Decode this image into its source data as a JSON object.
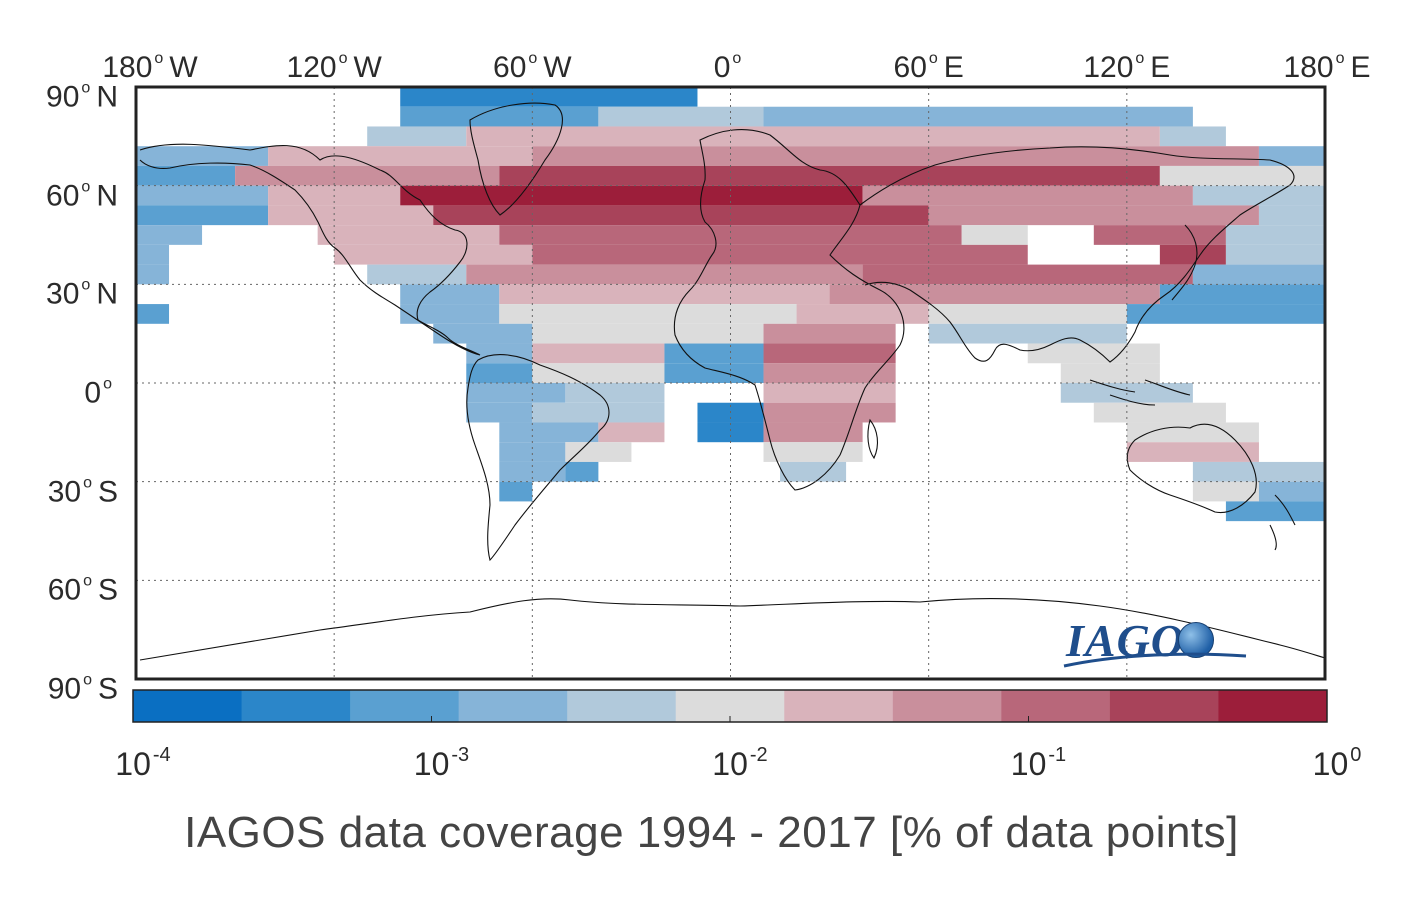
{
  "figure": {
    "caption": "IAGOS data coverage 1994 - 2017 [% of data points]",
    "logo_text": "IAGOS",
    "logo_icon": "globe-icon"
  },
  "map": {
    "lon_labels": [
      {
        "deg": "180",
        "hemi": "W",
        "lon": -180
      },
      {
        "deg": "120",
        "hemi": "W",
        "lon": -120
      },
      {
        "deg": "60",
        "hemi": "W",
        "lon": -60
      },
      {
        "deg": "0",
        "hemi": "",
        "lon": 0
      },
      {
        "deg": "60",
        "hemi": "E",
        "lon": 60
      },
      {
        "deg": "120",
        "hemi": "E",
        "lon": 120
      },
      {
        "deg": "180",
        "hemi": "E",
        "lon": 180
      }
    ],
    "lat_labels": [
      {
        "deg": "90",
        "hemi": "N",
        "lat": 90
      },
      {
        "deg": "60",
        "hemi": "N",
        "lat": 60
      },
      {
        "deg": "30",
        "hemi": "N",
        "lat": 30
      },
      {
        "deg": "0",
        "hemi": "",
        "lat": 0
      },
      {
        "deg": "30",
        "hemi": "S",
        "lat": -30
      },
      {
        "deg": "60",
        "hemi": "S",
        "lat": -60
      },
      {
        "deg": "90",
        "hemi": "S",
        "lat": -90
      }
    ],
    "gridlines": true,
    "lon_range": [
      -180,
      180
    ],
    "lat_range": [
      -90,
      90
    ]
  },
  "chart_data": {
    "type": "heatmap",
    "title": "IAGOS data coverage 1994 - 2017 [% of data points]",
    "colorbar": {
      "scale": "log",
      "range": [
        0.0001,
        1
      ],
      "tick_labels": [
        {
          "base": "10",
          "exp": "-4",
          "value": 0.0001
        },
        {
          "base": "10",
          "exp": "-3",
          "value": 0.001
        },
        {
          "base": "10",
          "exp": "-2",
          "value": 0.01
        },
        {
          "base": "10",
          "exp": "-1",
          "value": 0.1
        },
        {
          "base": "10",
          "exp": "0",
          "value": 1
        }
      ],
      "colors": [
        "#0a6fc2",
        "#2b86c9",
        "#5aa0d1",
        "#86b4d8",
        "#b1c9db",
        "#dcdcdc",
        "#d9b3bb",
        "#c98f9c",
        "#b8677a",
        "#a8435a",
        "#9c1e3a"
      ]
    },
    "cell_size_deg": [
      6,
      6
    ],
    "bands": [
      {
        "lat": [
          84,
          90
        ],
        "lon": [
          -100,
          -10
        ],
        "level": 1
      },
      {
        "lat": [
          78,
          84
        ],
        "lon": [
          -100,
          -40
        ],
        "level": 2
      },
      {
        "lat": [
          78,
          84
        ],
        "lon": [
          -40,
          10
        ],
        "level": 4
      },
      {
        "lat": [
          78,
          84
        ],
        "lon": [
          10,
          140
        ],
        "level": 3
      },
      {
        "lat": [
          72,
          78
        ],
        "lon": [
          -110,
          -80
        ],
        "level": 4
      },
      {
        "lat": [
          72,
          78
        ],
        "lon": [
          -80,
          130
        ],
        "level": 6
      },
      {
        "lat": [
          72,
          78
        ],
        "lon": [
          130,
          150
        ],
        "level": 4
      },
      {
        "lat": [
          66,
          72
        ],
        "lon": [
          -180,
          -140
        ],
        "level": 3
      },
      {
        "lat": [
          66,
          72
        ],
        "lon": [
          -140,
          -60
        ],
        "level": 6
      },
      {
        "lat": [
          66,
          72
        ],
        "lon": [
          -60,
          160
        ],
        "level": 7
      },
      {
        "lat": [
          66,
          72
        ],
        "lon": [
          160,
          180
        ],
        "level": 3
      },
      {
        "lat": [
          60,
          66
        ],
        "lon": [
          -180,
          -150
        ],
        "level": 2
      },
      {
        "lat": [
          60,
          66
        ],
        "lon": [
          -150,
          -70
        ],
        "level": 7
      },
      {
        "lat": [
          60,
          66
        ],
        "lon": [
          -70,
          130
        ],
        "level": 9
      },
      {
        "lat": [
          60,
          66
        ],
        "lon": [
          130,
          180
        ],
        "level": 5
      },
      {
        "lat": [
          54,
          60
        ],
        "lon": [
          -180,
          -140
        ],
        "level": 3
      },
      {
        "lat": [
          54,
          60
        ],
        "lon": [
          -140,
          -100
        ],
        "level": 6
      },
      {
        "lat": [
          54,
          60
        ],
        "lon": [
          -100,
          40
        ],
        "level": 10
      },
      {
        "lat": [
          54,
          60
        ],
        "lon": [
          40,
          140
        ],
        "level": 7
      },
      {
        "lat": [
          54,
          60
        ],
        "lon": [
          140,
          180
        ],
        "level": 4
      },
      {
        "lat": [
          48,
          54
        ],
        "lon": [
          -180,
          -140
        ],
        "level": 2
      },
      {
        "lat": [
          48,
          54
        ],
        "lon": [
          -140,
          -90
        ],
        "level": 6
      },
      {
        "lat": [
          48,
          54
        ],
        "lon": [
          -90,
          60
        ],
        "level": 9
      },
      {
        "lat": [
          48,
          54
        ],
        "lon": [
          60,
          160
        ],
        "level": 7
      },
      {
        "lat": [
          48,
          54
        ],
        "lon": [
          160,
          180
        ],
        "level": 4
      },
      {
        "lat": [
          42,
          48
        ],
        "lon": [
          -180,
          -160
        ],
        "level": 3
      },
      {
        "lat": [
          42,
          48
        ],
        "lon": [
          -125,
          -70
        ],
        "level": 6
      },
      {
        "lat": [
          42,
          48
        ],
        "lon": [
          -70,
          70
        ],
        "level": 8
      },
      {
        "lat": [
          42,
          48
        ],
        "lon": [
          70,
          90
        ],
        "level": 5
      },
      {
        "lat": [
          42,
          48
        ],
        "lon": [
          110,
          150
        ],
        "level": 8
      },
      {
        "lat": [
          42,
          48
        ],
        "lon": [
          150,
          180
        ],
        "level": 4
      },
      {
        "lat": [
          36,
          42
        ],
        "lon": [
          -180,
          -170
        ],
        "level": 3
      },
      {
        "lat": [
          36,
          42
        ],
        "lon": [
          -120,
          -60
        ],
        "level": 6
      },
      {
        "lat": [
          36,
          42
        ],
        "lon": [
          -60,
          90
        ],
        "level": 8
      },
      {
        "lat": [
          36,
          42
        ],
        "lon": [
          130,
          150
        ],
        "level": 9
      },
      {
        "lat": [
          36,
          42
        ],
        "lon": [
          150,
          180
        ],
        "level": 4
      },
      {
        "lat": [
          30,
          36
        ],
        "lon": [
          -180,
          -170
        ],
        "level": 3
      },
      {
        "lat": [
          30,
          36
        ],
        "lon": [
          -110,
          -80
        ],
        "level": 4
      },
      {
        "lat": [
          30,
          36
        ],
        "lon": [
          -80,
          40
        ],
        "level": 7
      },
      {
        "lat": [
          30,
          36
        ],
        "lon": [
          40,
          140
        ],
        "level": 8
      },
      {
        "lat": [
          30,
          36
        ],
        "lon": [
          140,
          180
        ],
        "level": 3
      },
      {
        "lat": [
          24,
          30
        ],
        "lon": [
          -100,
          -70
        ],
        "level": 3
      },
      {
        "lat": [
          24,
          30
        ],
        "lon": [
          -70,
          30
        ],
        "level": 6
      },
      {
        "lat": [
          24,
          30
        ],
        "lon": [
          30,
          130
        ],
        "level": 7
      },
      {
        "lat": [
          24,
          30
        ],
        "lon": [
          130,
          180
        ],
        "level": 2
      },
      {
        "lat": [
          18,
          24
        ],
        "lon": [
          -180,
          -170
        ],
        "level": 2
      },
      {
        "lat": [
          18,
          24
        ],
        "lon": [
          -100,
          -70
        ],
        "level": 3
      },
      {
        "lat": [
          18,
          24
        ],
        "lon": [
          -70,
          20
        ],
        "level": 5
      },
      {
        "lat": [
          18,
          24
        ],
        "lon": [
          20,
          60
        ],
        "level": 6
      },
      {
        "lat": [
          18,
          24
        ],
        "lon": [
          60,
          120
        ],
        "level": 5
      },
      {
        "lat": [
          18,
          24
        ],
        "lon": [
          120,
          180
        ],
        "level": 2
      },
      {
        "lat": [
          12,
          18
        ],
        "lon": [
          -90,
          -60
        ],
        "level": 3
      },
      {
        "lat": [
          12,
          18
        ],
        "lon": [
          -60,
          10
        ],
        "level": 5
      },
      {
        "lat": [
          12,
          18
        ],
        "lon": [
          10,
          50
        ],
        "level": 7
      },
      {
        "lat": [
          12,
          18
        ],
        "lon": [
          60,
          120
        ],
        "level": 4
      },
      {
        "lat": [
          6,
          12
        ],
        "lon": [
          -80,
          -60
        ],
        "level": 3
      },
      {
        "lat": [
          6,
          12
        ],
        "lon": [
          -60,
          -20
        ],
        "level": 6
      },
      {
        "lat": [
          6,
          12
        ],
        "lon": [
          -20,
          10
        ],
        "level": 2
      },
      {
        "lat": [
          6,
          12
        ],
        "lon": [
          10,
          50
        ],
        "level": 8
      },
      {
        "lat": [
          6,
          12
        ],
        "lon": [
          90,
          130
        ],
        "level": 5
      },
      {
        "lat": [
          0,
          6
        ],
        "lon": [
          -80,
          -60
        ],
        "level": 2
      },
      {
        "lat": [
          0,
          6
        ],
        "lon": [
          -60,
          -20
        ],
        "level": 5
      },
      {
        "lat": [
          0,
          6
        ],
        "lon": [
          -20,
          10
        ],
        "level": 2
      },
      {
        "lat": [
          0,
          6
        ],
        "lon": [
          10,
          50
        ],
        "level": 7
      },
      {
        "lat": [
          0,
          6
        ],
        "lon": [
          100,
          130
        ],
        "level": 5
      },
      {
        "lat": [
          -6,
          0
        ],
        "lon": [
          -80,
          -50
        ],
        "level": 3
      },
      {
        "lat": [
          -6,
          0
        ],
        "lon": [
          -50,
          -20
        ],
        "level": 4
      },
      {
        "lat": [
          -6,
          0
        ],
        "lon": [
          10,
          50
        ],
        "level": 6
      },
      {
        "lat": [
          -6,
          0
        ],
        "lon": [
          100,
          140
        ],
        "level": 4
      },
      {
        "lat": [
          -12,
          -6
        ],
        "lon": [
          -80,
          -60
        ],
        "level": 3
      },
      {
        "lat": [
          -12,
          -6
        ],
        "lon": [
          -60,
          -20
        ],
        "level": 4
      },
      {
        "lat": [
          -12,
          -6
        ],
        "lon": [
          -10,
          10
        ],
        "level": 1
      },
      {
        "lat": [
          -12,
          -6
        ],
        "lon": [
          10,
          50
        ],
        "level": 7
      },
      {
        "lat": [
          -12,
          -6
        ],
        "lon": [
          110,
          150
        ],
        "level": 5
      },
      {
        "lat": [
          -18,
          -12
        ],
        "lon": [
          -70,
          -40
        ],
        "level": 3
      },
      {
        "lat": [
          -18,
          -12
        ],
        "lon": [
          -40,
          -20
        ],
        "level": 6
      },
      {
        "lat": [
          -18,
          -12
        ],
        "lon": [
          -10,
          10
        ],
        "level": 1
      },
      {
        "lat": [
          -18,
          -12
        ],
        "lon": [
          10,
          40
        ],
        "level": 7
      },
      {
        "lat": [
          -18,
          -12
        ],
        "lon": [
          120,
          160
        ],
        "level": 5
      },
      {
        "lat": [
          -24,
          -18
        ],
        "lon": [
          -70,
          -50
        ],
        "level": 3
      },
      {
        "lat": [
          -24,
          -18
        ],
        "lon": [
          -50,
          -30
        ],
        "level": 5
      },
      {
        "lat": [
          -24,
          -18
        ],
        "lon": [
          10,
          40
        ],
        "level": 5
      },
      {
        "lat": [
          -24,
          -18
        ],
        "lon": [
          120,
          160
        ],
        "level": 6
      },
      {
        "lat": [
          -30,
          -24
        ],
        "lon": [
          -70,
          -50
        ],
        "level": 3
      },
      {
        "lat": [
          -30,
          -24
        ],
        "lon": [
          -50,
          -40
        ],
        "level": 2
      },
      {
        "lat": [
          -30,
          -24
        ],
        "lon": [
          15,
          35
        ],
        "level": 4
      },
      {
        "lat": [
          -30,
          -24
        ],
        "lon": [
          140,
          180
        ],
        "level": 4
      },
      {
        "lat": [
          -36,
          -30
        ],
        "lon": [
          -70,
          -60
        ],
        "level": 2
      },
      {
        "lat": [
          -36,
          -30
        ],
        "lon": [
          140,
          160
        ],
        "level": 5
      },
      {
        "lat": [
          -36,
          -30
        ],
        "lon": [
          160,
          180
        ],
        "level": 3
      },
      {
        "lat": [
          -42,
          -36
        ],
        "lon": [
          150,
          180
        ],
        "level": 2
      }
    ]
  }
}
